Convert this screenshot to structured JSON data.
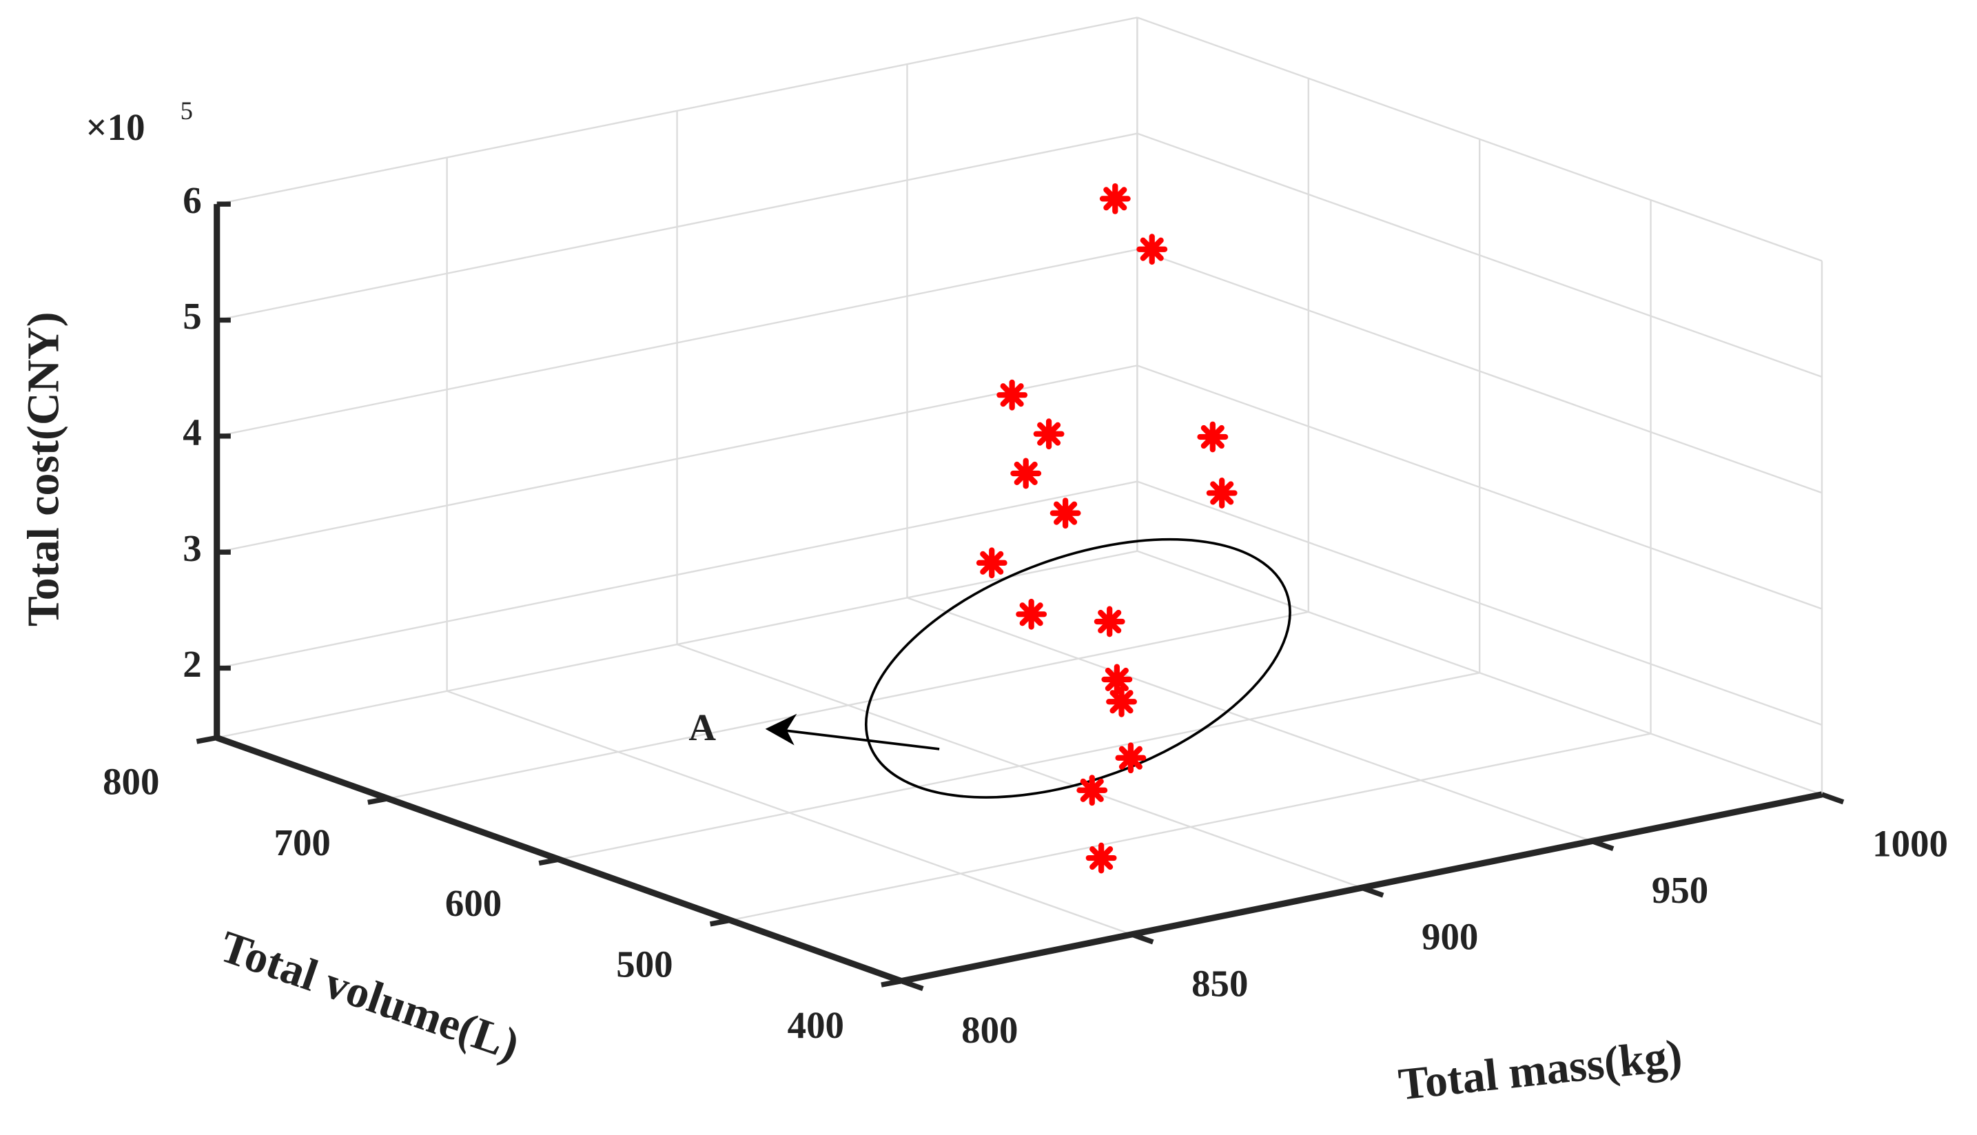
{
  "chart_data": {
    "type": "scatter3d",
    "xlabel": "Total mass(kg)",
    "ylabel": "Total volume(L)",
    "zlabel": "Total cost(CNY)",
    "zmultiplier": {
      "base": "×10",
      "exponent": "5"
    },
    "annotation": "A",
    "color": "#ff0000",
    "x": [
      958,
      966,
      917,
      925,
      920,
      942,
      944,
      910,
      894,
      884,
      901,
      884,
      885,
      887,
      860,
      862
    ],
    "y": [
      700,
      700,
      650,
      650,
      650,
      600,
      600,
      600,
      600,
      550,
      550,
      500,
      500,
      500,
      450,
      450
    ],
    "z": [
      5.3,
      4.8,
      4.2,
      3.8,
      3.5,
      3.9,
      3.4,
      3.5,
      3.2,
      3.1,
      2.9,
      2.8,
      2.6,
      2.1,
      2.3,
      1.7
    ],
    "xlim": [
      800,
      1000
    ],
    "xticks": [
      800,
      850,
      900,
      950,
      1000
    ],
    "ylim": [
      400,
      800
    ],
    "yticks": [
      400,
      500,
      600,
      700,
      800
    ],
    "zlim": [
      1.4,
      6
    ],
    "zticks": [
      2,
      3,
      4,
      5,
      6
    ],
    "grid": true
  }
}
